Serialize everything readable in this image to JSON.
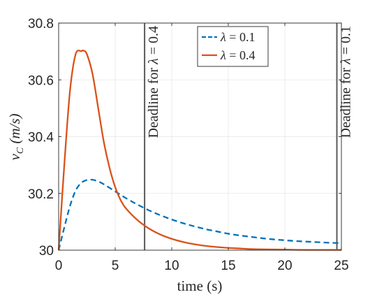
{
  "chart_data": {
    "type": "line",
    "xlabel": "time (s)",
    "ylabel_var": "v",
    "ylabel_sub": "C",
    "ylabel_unit": "(m/s)",
    "xlim": [
      0,
      25
    ],
    "ylim": [
      30,
      30.8
    ],
    "x_ticks": [
      0,
      5,
      10,
      15,
      20,
      25
    ],
    "y_ticks": [
      30,
      30.2,
      30.4,
      30.6,
      30.8
    ],
    "x_tick_labels": [
      "0",
      "5",
      "10",
      "15",
      "20",
      "25"
    ],
    "y_tick_labels": [
      "30",
      "30.2",
      "30.4",
      "30.6",
      "30.8"
    ],
    "grid": true,
    "legend_position": "top-right",
    "series": [
      {
        "name": "λ = 0.1",
        "lambda_symbol": "λ",
        "lambda_value": "0.1",
        "color": "#0072BD",
        "style": "dashed",
        "x": [
          0,
          0.5,
          1,
          1.5,
          2,
          2.5,
          3,
          3.5,
          4,
          5,
          6,
          7,
          8,
          9,
          10,
          11,
          12,
          13,
          14,
          15,
          16,
          17,
          18,
          19,
          20,
          21,
          22,
          23,
          24,
          25
        ],
        "y": [
          30.0,
          30.08,
          30.155,
          30.21,
          30.237,
          30.247,
          30.248,
          30.242,
          30.232,
          30.207,
          30.182,
          30.16,
          30.14,
          30.123,
          30.108,
          30.095,
          30.084,
          30.074,
          30.066,
          30.058,
          30.052,
          30.047,
          30.042,
          30.038,
          30.035,
          30.032,
          30.03,
          30.028,
          30.026,
          30.025
        ]
      },
      {
        "name": "λ = 0.4",
        "lambda_symbol": "λ",
        "lambda_value": "0.4",
        "color": "#D95319",
        "style": "solid",
        "x": [
          0,
          0.5,
          1,
          1.5,
          2,
          2.2,
          2.5,
          3,
          3.5,
          4,
          4.5,
          5,
          5.5,
          6,
          7,
          8,
          9,
          10,
          11,
          12,
          13,
          14,
          15,
          16,
          17,
          18,
          20,
          22,
          25
        ],
        "y": [
          30.0,
          30.3,
          30.56,
          30.69,
          30.701,
          30.703,
          30.69,
          30.62,
          30.5,
          30.38,
          30.29,
          30.222,
          30.175,
          30.145,
          30.105,
          30.076,
          30.055,
          30.04,
          30.029,
          30.021,
          30.015,
          30.011,
          30.008,
          30.006,
          30.004,
          30.003,
          30.002,
          30.001,
          30.001
        ]
      }
    ],
    "vlines": [
      {
        "x": 7.6,
        "label": "Deadline for λ = 0.4",
        "label_prefix": "Deadline for",
        "lambda_symbol": "λ",
        "lambda_value": "0.4",
        "color": "#595959"
      },
      {
        "x": 24.6,
        "label": "Deadline for λ = 0.1",
        "label_prefix": "Deadline for",
        "lambda_symbol": "λ",
        "lambda_value": "0.1",
        "color": "#595959"
      }
    ]
  }
}
